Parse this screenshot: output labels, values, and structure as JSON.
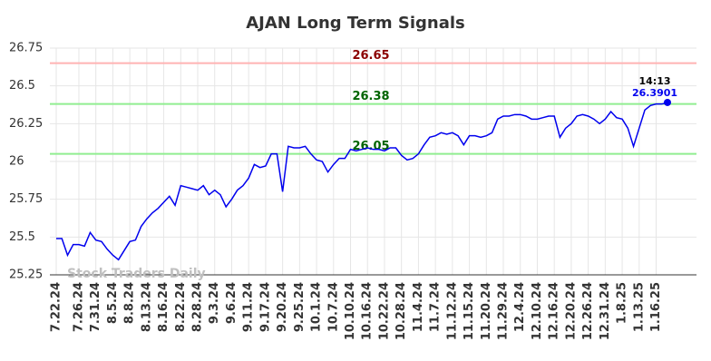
{
  "chart_data": {
    "type": "line",
    "title": "AJAN Long Term Signals",
    "categories": [
      "7.22.24",
      null,
      null,
      null,
      "7.26.24",
      null,
      null,
      "7.31.24",
      null,
      null,
      "8.5.24",
      null,
      null,
      "8.8.24",
      null,
      null,
      "8.13.24",
      null,
      null,
      "8.16.24",
      null,
      null,
      "8.22.24",
      null,
      null,
      "8.28.24",
      null,
      null,
      "9.3.24",
      null,
      null,
      "9.6.24",
      null,
      null,
      "9.11.24",
      null,
      null,
      "9.17.24",
      null,
      null,
      "9.20.24",
      null,
      null,
      "9.25.24",
      null,
      null,
      "10.1.24",
      null,
      null,
      "10.7.24",
      null,
      null,
      "10.10.24",
      null,
      null,
      "10.16.24",
      null,
      null,
      "10.22.24",
      null,
      null,
      "10.28.24",
      null,
      null,
      "11.4.24",
      null,
      null,
      "11.7.24",
      null,
      null,
      "11.12.24",
      null,
      null,
      "11.15.24",
      null,
      null,
      "11.20.24",
      null,
      null,
      "11.29.24",
      null,
      null,
      "12.4.24",
      null,
      null,
      "12.10.24",
      null,
      null,
      "12.16.24",
      null,
      null,
      "12.20.24",
      null,
      null,
      "12.26.24",
      null,
      null,
      "12.31.24",
      null,
      null,
      "1.8.25",
      null,
      null,
      "1.13.25",
      null,
      null,
      "1.16.25",
      null,
      null
    ],
    "series": [
      {
        "color": "#0000ee",
        "values": [
          25.49,
          25.49,
          25.38,
          25.45,
          25.45,
          25.44,
          25.53,
          25.48,
          25.47,
          25.42,
          25.38,
          25.35,
          25.41,
          25.47,
          25.48,
          25.57,
          25.62,
          25.66,
          25.69,
          25.73,
          25.77,
          25.71,
          25.84,
          25.83,
          25.82,
          25.81,
          25.84,
          25.78,
          25.81,
          25.78,
          25.7,
          25.75,
          25.81,
          25.84,
          25.89,
          25.98,
          25.96,
          25.97,
          26.05,
          26.05,
          25.8,
          26.1,
          26.09,
          26.09,
          26.1,
          26.05,
          26.01,
          26.0,
          25.93,
          25.98,
          26.02,
          26.02,
          26.08,
          26.07,
          26.08,
          26.09,
          26.08,
          26.08,
          26.07,
          26.09,
          26.09,
          26.04,
          26.01,
          26.02,
          26.05,
          26.11,
          26.16,
          26.17,
          26.19,
          26.18,
          26.19,
          26.17,
          26.11,
          26.17,
          26.17,
          26.16,
          26.17,
          26.19,
          26.28,
          26.3,
          26.3,
          26.31,
          26.31,
          26.3,
          26.28,
          26.28,
          26.29,
          26.3,
          26.3,
          26.16,
          26.22,
          26.25,
          26.3,
          26.31,
          26.3,
          26.28,
          26.25,
          26.28,
          26.33,
          26.29,
          26.28,
          26.22,
          26.1,
          26.22,
          26.34,
          26.37,
          26.38,
          26.38,
          26.3901
        ]
      }
    ],
    "ylim": [
      25.25,
      26.75
    ],
    "yticks": [
      25.25,
      25.5,
      25.75,
      26,
      26.25,
      26.5,
      26.75
    ],
    "grid": true,
    "hlines": [
      {
        "value": 26.65,
        "color": "#ffb3b3",
        "label_color": "#8b0000"
      },
      {
        "value": 26.38,
        "color": "#90ee90",
        "label_color": "#006400"
      },
      {
        "value": 26.05,
        "color": "#90ee90",
        "label_color": "#006400"
      }
    ],
    "last_time": "14:13",
    "watermark": "Stock Traders Daily"
  }
}
